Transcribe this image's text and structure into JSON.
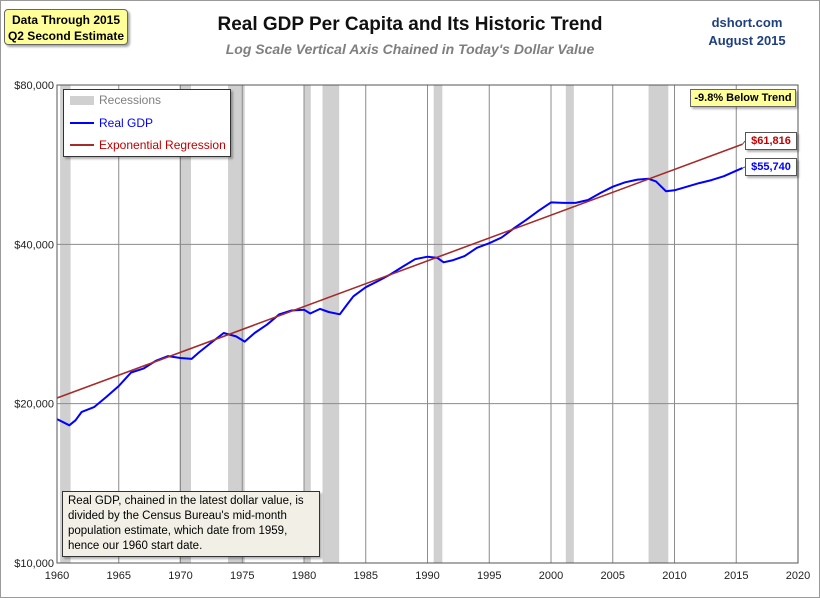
{
  "note_box": {
    "line1": "Data Through 2015",
    "line2": "Q2 Second Estimate"
  },
  "source": {
    "name": "dshort.com",
    "date": "August 2015"
  },
  "chart_data": {
    "type": "line",
    "title": "Real GDP Per Capita and Its Historic Trend",
    "subtitle": "Log Scale Vertical Axis Chained in Today's Dollar Value",
    "y_scale": "log",
    "xlim": [
      1960,
      2020
    ],
    "ylim": [
      10000,
      80000
    ],
    "x_ticks": [
      1960,
      1965,
      1970,
      1975,
      1980,
      1985,
      1990,
      1995,
      2000,
      2005,
      2010,
      2015,
      2020
    ],
    "y_ticks": [
      10000,
      20000,
      40000,
      80000
    ],
    "y_tick_labels": [
      "$10,000",
      "$20,000",
      "$40,000",
      "$80,000"
    ],
    "grid": true,
    "legend": {
      "placement": "top-left",
      "entries": [
        {
          "label": "Recessions",
          "color": "#d0d0d0"
        },
        {
          "label": "Real GDP",
          "color": "#0000ff"
        },
        {
          "label": "Exponential Regression",
          "color": "#a52a2a"
        }
      ]
    },
    "recessions": [
      [
        1960.25,
        1961.1
      ],
      [
        1969.9,
        1970.85
      ],
      [
        1973.85,
        1975.2
      ],
      [
        1980.0,
        1980.55
      ],
      [
        1981.5,
        1982.85
      ],
      [
        1990.5,
        1991.2
      ],
      [
        2001.2,
        2001.85
      ],
      [
        2007.9,
        2009.5
      ]
    ],
    "series": [
      {
        "name": "Real GDP",
        "color": "#0000ff",
        "points": [
          [
            1960.0,
            18700
          ],
          [
            1960.5,
            18450
          ],
          [
            1961.0,
            18200
          ],
          [
            1961.5,
            18600
          ],
          [
            1962.0,
            19300
          ],
          [
            1963.0,
            19700
          ],
          [
            1964.0,
            20600
          ],
          [
            1965.0,
            21600
          ],
          [
            1966.0,
            22900
          ],
          [
            1967.0,
            23300
          ],
          [
            1968.0,
            24100
          ],
          [
            1969.0,
            24600
          ],
          [
            1970.0,
            24400
          ],
          [
            1970.9,
            24300
          ],
          [
            1971.5,
            25000
          ],
          [
            1972.5,
            26100
          ],
          [
            1973.5,
            27200
          ],
          [
            1974.5,
            26800
          ],
          [
            1975.2,
            26200
          ],
          [
            1976.0,
            27200
          ],
          [
            1977.0,
            28200
          ],
          [
            1978.0,
            29500
          ],
          [
            1979.0,
            30000
          ],
          [
            1980.0,
            30100
          ],
          [
            1980.5,
            29600
          ],
          [
            1981.3,
            30200
          ],
          [
            1982.0,
            29800
          ],
          [
            1982.9,
            29500
          ],
          [
            1983.5,
            30800
          ],
          [
            1984.0,
            31900
          ],
          [
            1985.0,
            33200
          ],
          [
            1986.0,
            34100
          ],
          [
            1987.0,
            35100
          ],
          [
            1988.0,
            36300
          ],
          [
            1989.0,
            37500
          ],
          [
            1990.0,
            37900
          ],
          [
            1990.8,
            37700
          ],
          [
            1991.3,
            37000
          ],
          [
            1992.0,
            37300
          ],
          [
            1993.0,
            38000
          ],
          [
            1994.0,
            39400
          ],
          [
            1995.0,
            40200
          ],
          [
            1996.0,
            41200
          ],
          [
            1997.0,
            42900
          ],
          [
            1998.0,
            44500
          ],
          [
            1999.0,
            46300
          ],
          [
            2000.0,
            48000
          ],
          [
            2001.0,
            47900
          ],
          [
            2002.0,
            47900
          ],
          [
            2003.0,
            48500
          ],
          [
            2004.0,
            50000
          ],
          [
            2005.0,
            51400
          ],
          [
            2006.0,
            52400
          ],
          [
            2007.0,
            53000
          ],
          [
            2007.9,
            53200
          ],
          [
            2008.5,
            52600
          ],
          [
            2009.3,
            50400
          ],
          [
            2010.0,
            50600
          ],
          [
            2011.0,
            51400
          ],
          [
            2012.0,
            52200
          ],
          [
            2013.0,
            52900
          ],
          [
            2014.0,
            53800
          ],
          [
            2015.0,
            55100
          ],
          [
            2015.5,
            55740
          ]
        ]
      },
      {
        "name": "Exponential Regression",
        "color": "#a52a2a",
        "points": [
          [
            1960.0,
            20500
          ],
          [
            2015.5,
            61816
          ]
        ]
      }
    ],
    "annotations": {
      "trend_gap": "-9.8% Below Trend",
      "regression_end": "$61,816",
      "gdp_end": "$55,740",
      "note": "Real GDP, chained in the latest dollar value, is divided by the Census Bureau's mid-month population estimate, which date from 1959, hence our 1960 start date."
    }
  }
}
